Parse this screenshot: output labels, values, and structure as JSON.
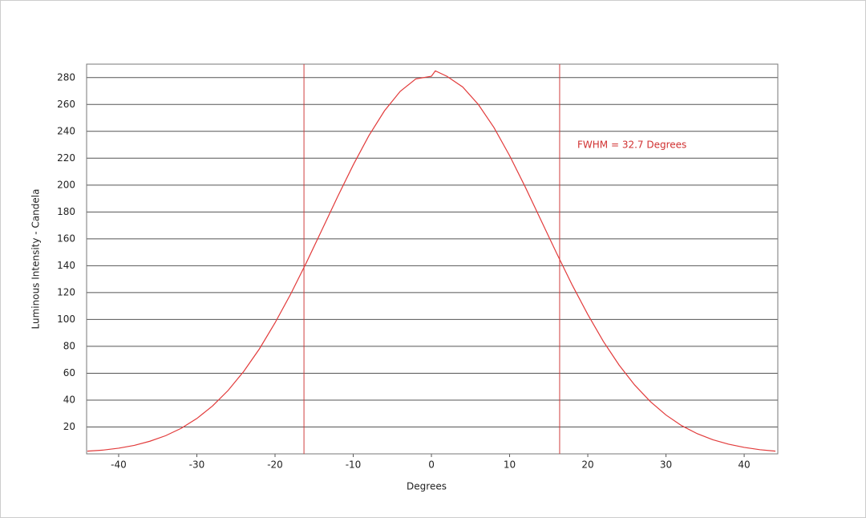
{
  "chart_data": {
    "type": "line",
    "x_label": "Degrees",
    "y_label": "Luminous Intensity - Candela",
    "annotation": "FWHM = 32.7 Degrees",
    "x": [
      -44,
      -42,
      -40,
      -38,
      -36,
      -34,
      -32,
      -30,
      -28,
      -26,
      -24,
      -22,
      -20,
      -18,
      -16,
      -14,
      -12,
      -10,
      -8,
      -6,
      -4,
      -2,
      0,
      0.5,
      2,
      4,
      6,
      8,
      10,
      12,
      14,
      16,
      18,
      20,
      22,
      24,
      26,
      28,
      30,
      32,
      34,
      36,
      38,
      40,
      42,
      44
    ],
    "series": [
      {
        "name": "Luminous Intensity",
        "color": "#e23b3b",
        "values": [
          2,
          2.8,
          4.2,
          6.3,
          9.4,
          13.5,
          19,
          26.3,
          35.6,
          47.2,
          61.4,
          78.1,
          97.5,
          118.9,
          142.2,
          166.7,
          191.3,
          215,
          236.8,
          255.3,
          269.7,
          279,
          281,
          285,
          280.9,
          273,
          260,
          242.8,
          221.9,
          198.6,
          174,
          149.5,
          125.7,
          103.7,
          83.6,
          66.1,
          51.2,
          38.9,
          28.9,
          21,
          15,
          10.5,
          7.2,
          4.8,
          3.1,
          2
        ]
      }
    ],
    "vlines": [
      -16.3,
      16.4
    ],
    "vline_color": "#d04040",
    "xlim": [
      -44.1,
      44.3
    ],
    "ylim": [
      0,
      290
    ],
    "xticks": [
      -40,
      -30,
      -20,
      -10,
      0,
      10,
      20,
      30,
      40
    ],
    "yticks": [
      20,
      40,
      60,
      80,
      100,
      120,
      140,
      160,
      180,
      200,
      220,
      240,
      260,
      280
    ],
    "grid": true
  }
}
